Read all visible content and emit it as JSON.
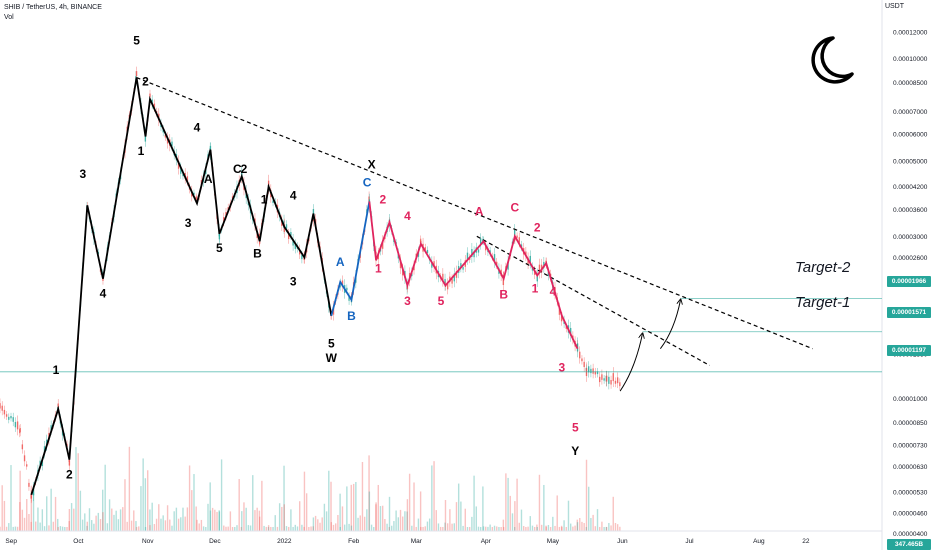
{
  "header": {
    "symbol_line": "SHIB / TetherUS, 4h, BINANCE",
    "indicator": "Vol"
  },
  "axis": {
    "currency": "USDT",
    "y_ticks": [
      "0.00012000",
      "0.00010000",
      "0.00008500",
      "0.00007000",
      "0.00006000",
      "0.00005000",
      "0.00004200",
      "0.00003600",
      "0.00003000",
      "0.00002600",
      "0.00002200",
      "0.00001800",
      "0.00001350",
      "0.00001000",
      "0.00000850",
      "0.00000730",
      "0.00000630",
      "0.00000530",
      "0.00000460",
      "0.00000400"
    ],
    "x_ticks": [
      "Sep",
      "Oct",
      "Nov",
      "Dec",
      "2022",
      "Feb",
      "Mar",
      "Apr",
      "May",
      "Jun",
      "Jul",
      "Aug",
      "22"
    ],
    "volume_label": "347.465B"
  },
  "price_tags": [
    {
      "text": "0.00001966",
      "color": "#26a69a"
    },
    {
      "text": "0.00001571",
      "color": "#26a69a"
    },
    {
      "text": "0.00001197",
      "color": "#26a69a"
    }
  ],
  "targets": {
    "target2": "Target-2",
    "target1": "Target-1"
  },
  "moon_icon": "crescent-moon-icon",
  "colors": {
    "up": "#26a69a",
    "down": "#ef5350",
    "black_wave": "#000000",
    "blue_wave": "#1565c0",
    "red_wave": "#e0245e"
  },
  "chart_data": {
    "type": "line",
    "title": "SHIB / TetherUS, 4h, BINANCE",
    "y_scale": "log",
    "ylim": [
      3.7e-06,
      0.00013
    ],
    "x_range": [
      "2021-08-27",
      "2022-09-25"
    ],
    "series": [
      {
        "name": "black wave",
        "color": "#000000",
        "points": [
          {
            "x": "2021-09-10",
            "y": 5.2e-06
          },
          {
            "x": "2021-09-22",
            "y": 9.3e-06
          },
          {
            "x": "2021-09-27",
            "y": 6.6e-06
          },
          {
            "x": "2021-10-05",
            "y": 3.7e-05
          },
          {
            "x": "2021-10-12",
            "y": 2.25e-05
          },
          {
            "x": "2021-10-27",
            "y": 8.8e-05
          },
          {
            "x": "2021-10-31",
            "y": 5.9e-05
          },
          {
            "x": "2021-11-02",
            "y": 7.6e-05
          },
          {
            "x": "2021-11-23",
            "y": 3.75e-05
          },
          {
            "x": "2021-11-29",
            "y": 5.4e-05
          },
          {
            "x": "2021-12-03",
            "y": 3.05e-05
          },
          {
            "x": "2021-12-13",
            "y": 4.5e-05
          },
          {
            "x": "2021-12-21",
            "y": 2.9e-05
          },
          {
            "x": "2021-12-25",
            "y": 4.2e-05
          },
          {
            "x": "2022-01-01",
            "y": 3.2e-05
          },
          {
            "x": "2022-01-10",
            "y": 2.6e-05
          },
          {
            "x": "2022-01-14",
            "y": 3.5e-05
          },
          {
            "x": "2022-01-22",
            "y": 1.75e-05
          }
        ]
      },
      {
        "name": "blue wave",
        "color": "#1565c0",
        "points": [
          {
            "x": "2022-01-22",
            "y": 1.75e-05
          },
          {
            "x": "2022-01-26",
            "y": 2.2e-05
          },
          {
            "x": "2022-01-31",
            "y": 1.95e-05
          },
          {
            "x": "2022-02-08",
            "y": 3.8e-05
          }
        ]
      },
      {
        "name": "red wave",
        "color": "#e0245e",
        "points": [
          {
            "x": "2022-02-08",
            "y": 3.8e-05
          },
          {
            "x": "2022-02-11",
            "y": 2.55e-05
          },
          {
            "x": "2022-02-17",
            "y": 3.3e-05
          },
          {
            "x": "2022-02-25",
            "y": 2.15e-05
          },
          {
            "x": "2022-03-03",
            "y": 2.85e-05
          },
          {
            "x": "2022-03-14",
            "y": 2.15e-05
          },
          {
            "x": "2022-03-31",
            "y": 2.9e-05
          },
          {
            "x": "2022-04-09",
            "y": 2.25e-05
          },
          {
            "x": "2022-04-14",
            "y": 3e-05
          },
          {
            "x": "2022-04-24",
            "y": 2.3e-05
          },
          {
            "x": "2022-04-28",
            "y": 2.5e-05
          },
          {
            "x": "2022-05-05",
            "y": 1.75e-05
          },
          {
            "x": "2022-05-12",
            "y": 1.4e-05
          }
        ]
      }
    ],
    "trend_lines": [
      {
        "from": {
          "x": "2021-10-27",
          "y": 8.8e-05
        },
        "to": {
          "x": "2022-08-25",
          "y": 1.4e-05
        },
        "style": "dashed"
      },
      {
        "from": {
          "x": "2022-03-28",
          "y": 3e-05
        },
        "to": {
          "x": "2022-07-10",
          "y": 1.25e-05
        },
        "style": "dashed"
      }
    ],
    "projection_arrows": [
      {
        "from": {
          "x": "2022-05-31",
          "y": 1.05e-05
        },
        "to": {
          "x": "2022-06-10",
          "y": 1.55e-05
        }
      },
      {
        "from": {
          "x": "2022-06-18",
          "y": 1.4e-05
        },
        "to": {
          "x": "2022-06-27",
          "y": 1.95e-05
        }
      }
    ],
    "target_lines": [
      {
        "label": "Target-2",
        "y": 1.966e-05,
        "from": "2022-06-27"
      },
      {
        "label": "Target-1",
        "y": 1.571e-05,
        "from": "2022-06-10"
      },
      {
        "label": "",
        "y": 1.197e-05,
        "from": "2021-08-27"
      }
    ],
    "wave_labels": [
      {
        "t": "1",
        "x": "2021-09-21",
        "y": 1.18e-05,
        "c": "#000000"
      },
      {
        "t": "2",
        "x": "2021-09-27",
        "y": 5.8e-06,
        "c": "#000000"
      },
      {
        "t": "3",
        "x": "2021-10-03",
        "y": 4.45e-05,
        "c": "#000000"
      },
      {
        "t": "4",
        "x": "2021-10-12",
        "y": 1.98e-05,
        "c": "#000000"
      },
      {
        "t": "5",
        "x": "2021-10-27",
        "y": 0.00011,
        "c": "#000000"
      },
      {
        "t": "2",
        "x": "2021-10-31",
        "y": 8.35e-05,
        "c": "#000000"
      },
      {
        "t": "1",
        "x": "2021-10-29",
        "y": 5.2e-05,
        "c": "#000000"
      },
      {
        "t": "4",
        "x": "2021-11-23",
        "y": 6.1e-05,
        "c": "#000000"
      },
      {
        "t": "3",
        "x": "2021-11-19",
        "y": 3.2e-05,
        "c": "#000000"
      },
      {
        "t": "A",
        "x": "2021-11-28",
        "y": 4.3e-05,
        "c": "#000000"
      },
      {
        "t": "5",
        "x": "2021-12-03",
        "y": 2.7e-05,
        "c": "#000000"
      },
      {
        "t": "C",
        "x": "2021-12-11",
        "y": 4.6e-05,
        "c": "#000000"
      },
      {
        "t": "2",
        "x": "2021-12-14",
        "y": 4.6e-05,
        "c": "#000000"
      },
      {
        "t": "1",
        "x": "2021-12-23",
        "y": 3.75e-05,
        "c": "#000000"
      },
      {
        "t": "B",
        "x": "2021-12-20",
        "y": 2.6e-05,
        "c": "#000000"
      },
      {
        "t": "4",
        "x": "2022-01-05",
        "y": 3.85e-05,
        "c": "#000000"
      },
      {
        "t": "3",
        "x": "2022-01-05",
        "y": 2.15e-05,
        "c": "#000000"
      },
      {
        "t": "5",
        "x": "2022-01-22",
        "y": 1.41e-05,
        "c": "#000000"
      },
      {
        "t": "W",
        "x": "2022-01-22",
        "y": 1.28e-05,
        "c": "#000000"
      },
      {
        "t": "X",
        "x": "2022-02-09",
        "y": 4.75e-05,
        "c": "#000000"
      },
      {
        "t": "Y",
        "x": "2022-05-11",
        "y": 6.8e-06,
        "c": "#000000"
      },
      {
        "t": "A",
        "x": "2022-01-26",
        "y": 2.45e-05,
        "c": "#1565c0"
      },
      {
        "t": "B",
        "x": "2022-01-31",
        "y": 1.7e-05,
        "c": "#1565c0"
      },
      {
        "t": "C",
        "x": "2022-02-07",
        "y": 4.2e-05,
        "c": "#1565c0"
      },
      {
        "t": "2",
        "x": "2022-02-14",
        "y": 3.75e-05,
        "c": "#e0245e"
      },
      {
        "t": "1",
        "x": "2022-02-12",
        "y": 2.35e-05,
        "c": "#e0245e"
      },
      {
        "t": "4",
        "x": "2022-02-25",
        "y": 3.35e-05,
        "c": "#e0245e"
      },
      {
        "t": "3",
        "x": "2022-02-25",
        "y": 1.88e-05,
        "c": "#e0245e"
      },
      {
        "t": "5",
        "x": "2022-03-12",
        "y": 1.88e-05,
        "c": "#e0245e"
      },
      {
        "t": "A",
        "x": "2022-03-29",
        "y": 3.45e-05,
        "c": "#e0245e"
      },
      {
        "t": "B",
        "x": "2022-04-09",
        "y": 1.97e-05,
        "c": "#e0245e"
      },
      {
        "t": "C",
        "x": "2022-04-14",
        "y": 3.55e-05,
        "c": "#e0245e"
      },
      {
        "t": "2",
        "x": "2022-04-24",
        "y": 3.1e-05,
        "c": "#e0245e"
      },
      {
        "t": "1",
        "x": "2022-04-23",
        "y": 2.05e-05,
        "c": "#e0245e"
      },
      {
        "t": "4",
        "x": "2022-05-01",
        "y": 2.01e-05,
        "c": "#e0245e"
      },
      {
        "t": "3",
        "x": "2022-05-05",
        "y": 1.2e-05,
        "c": "#e0245e"
      },
      {
        "t": "5",
        "x": "2022-05-11",
        "y": 8e-06,
        "c": "#e0245e"
      }
    ]
  }
}
